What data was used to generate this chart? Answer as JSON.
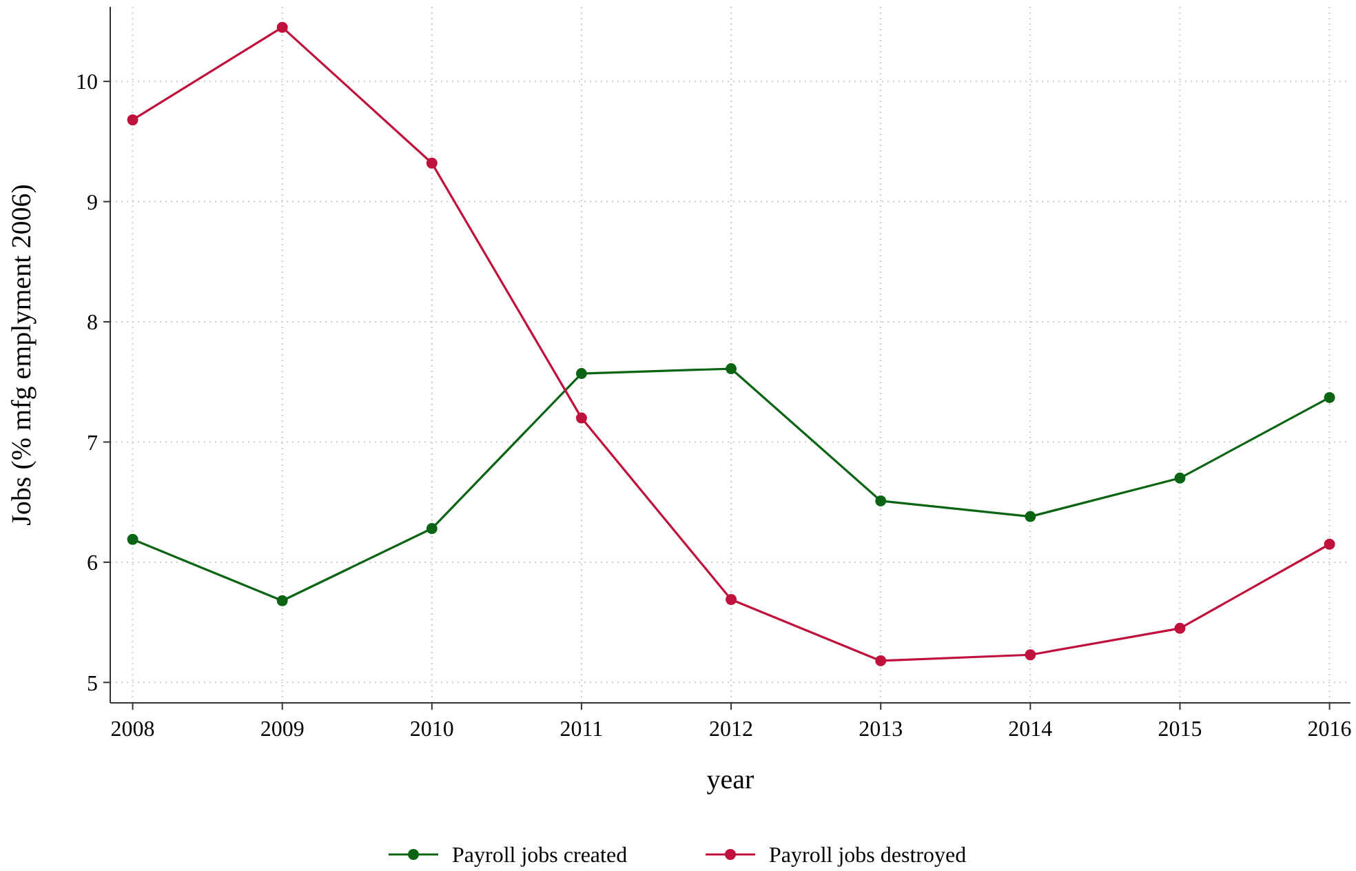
{
  "chart_data": {
    "type": "line",
    "xlabel": "year",
    "ylabel": "Jobs (% mfg emplyment 2006)",
    "x": [
      2008,
      2009,
      2010,
      2011,
      2012,
      2013,
      2014,
      2015,
      2016
    ],
    "xlim": [
      2007.85,
      2016.14
    ],
    "xticks": [
      2008,
      2009,
      2010,
      2011,
      2012,
      2013,
      2014,
      2015,
      2016
    ],
    "ylim": [
      4.83,
      10.62
    ],
    "yticks": [
      5,
      6,
      7,
      8,
      9,
      10
    ],
    "grid": true,
    "legend": "bottom",
    "marker": "circle",
    "line_style": "solid",
    "series": [
      {
        "name": "Payroll jobs created",
        "color": "#0a6414",
        "values": [
          6.19,
          5.68,
          6.28,
          7.57,
          7.61,
          6.51,
          6.38,
          6.7,
          7.37
        ]
      },
      {
        "name": "Payroll jobs destroyed",
        "color": "#c0103c",
        "values": [
          9.68,
          10.45,
          9.32,
          7.2,
          5.69,
          5.18,
          5.23,
          5.45,
          6.15
        ]
      }
    ]
  }
}
